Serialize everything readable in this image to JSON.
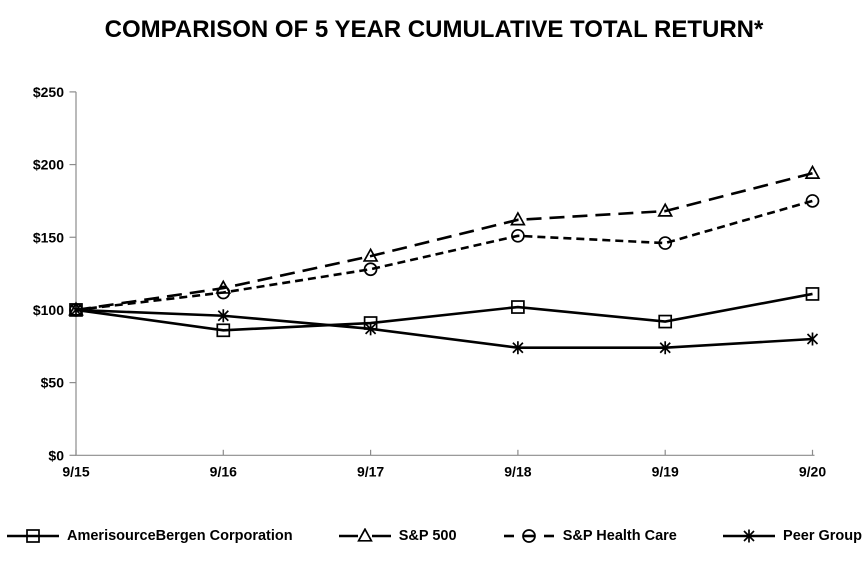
{
  "title": "COMPARISON OF 5 YEAR CUMULATIVE TOTAL RETURN*",
  "colors": {
    "series": "#000000",
    "axis": "#8c8c8c",
    "text": "#000000",
    "background": "#ffffff"
  },
  "chart_data": {
    "type": "line",
    "title": "COMPARISON OF 5 YEAR CUMULATIVE TOTAL RETURN*",
    "x": [
      "9/15",
      "9/16",
      "9/17",
      "9/18",
      "9/19",
      "9/20"
    ],
    "series": [
      {
        "name": "AmerisourceBergen Corporation",
        "marker": "square",
        "line_style": "solid",
        "values": [
          100,
          86,
          91,
          102,
          92,
          111
        ]
      },
      {
        "name": "S&P 500",
        "marker": "triangle",
        "line_style": "long-dash",
        "values": [
          100,
          115,
          137,
          162,
          168,
          194
        ]
      },
      {
        "name": "S&P Health Care",
        "marker": "circle",
        "line_style": "dash",
        "values": [
          100,
          112,
          128,
          151,
          146,
          175
        ]
      },
      {
        "name": "Peer Group",
        "marker": "star",
        "line_style": "solid",
        "values": [
          100,
          96,
          87,
          74,
          74,
          80
        ]
      }
    ],
    "xlabel": "",
    "ylabel": "",
    "ylim": [
      0,
      250
    ],
    "yticks": [
      0,
      50,
      100,
      150,
      200,
      250
    ],
    "ytick_labels": [
      "$0",
      "$50",
      "$100",
      "$150",
      "$200",
      "$250"
    ],
    "grid": false,
    "legend_position": "bottom"
  }
}
